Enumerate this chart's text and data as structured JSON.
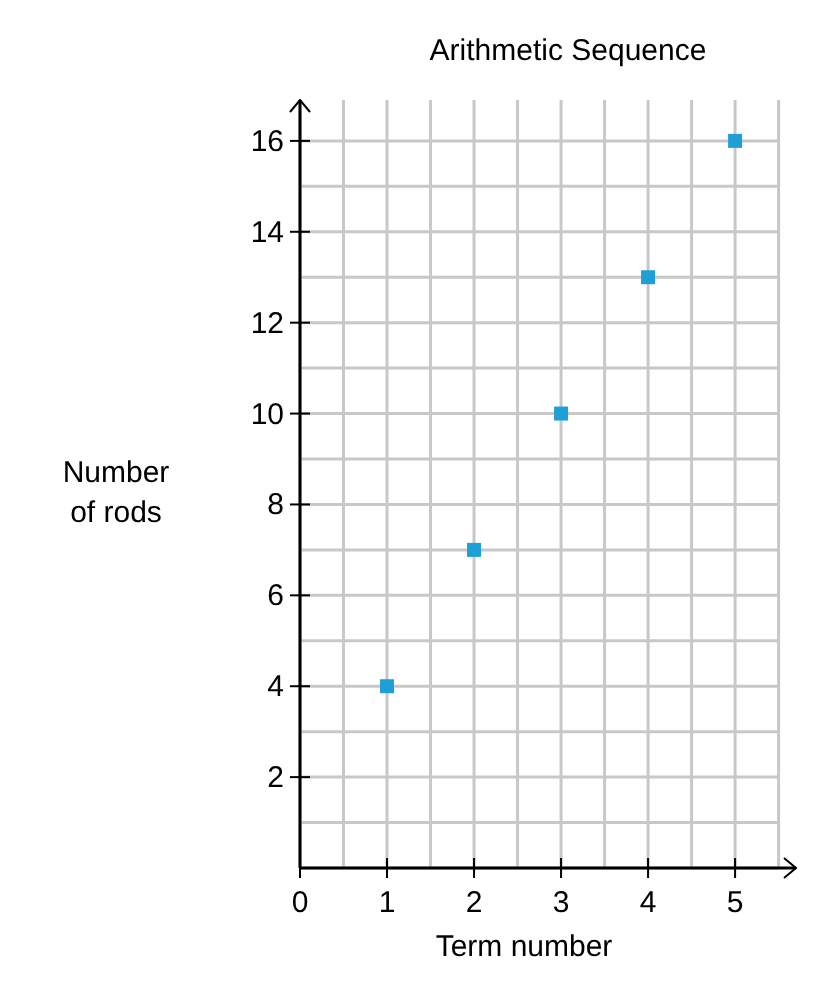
{
  "chart_data": {
    "type": "scatter",
    "title": "Arithmetic Sequence",
    "xlabel": "Term number",
    "ylabel": "Number of rods",
    "x": [
      1,
      2,
      3,
      4,
      5
    ],
    "values": [
      4,
      7,
      10,
      13,
      16
    ],
    "color": "#1e9fd6",
    "marker": "square",
    "grid": true,
    "xlim": [
      0,
      5.7
    ],
    "ylim": [
      0,
      16.9
    ],
    "xticks": [
      0,
      {
        "value": 0.5,
        "label": null
      },
      1,
      {
        "value": 1.5,
        "label": null
      },
      2,
      {
        "value": 2.5,
        "label": null
      },
      3,
      {
        "value": 3.5,
        "label": null
      },
      4,
      {
        "value": 4.5,
        "label": null
      },
      5,
      {
        "value": 5.5,
        "label": null
      }
    ],
    "yticks": [
      {
        "value": 0,
        "label": null
      },
      {
        "value": 1,
        "label": null
      },
      2,
      {
        "value": 3,
        "label": null
      },
      4,
      {
        "value": 5,
        "label": null
      },
      6,
      {
        "value": 7,
        "label": null
      },
      8,
      {
        "value": 9,
        "label": null
      },
      10,
      {
        "value": 11,
        "label": null
      },
      12,
      {
        "value": 13,
        "label": null
      },
      14,
      {
        "value": 15,
        "label": null
      },
      16
    ]
  }
}
